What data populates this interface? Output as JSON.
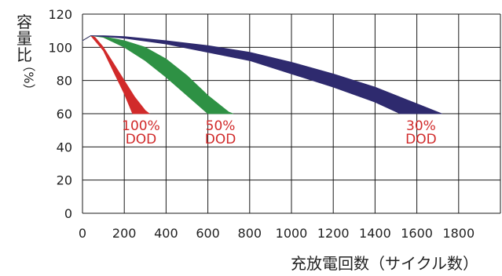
{
  "chart_data": {
    "type": "area",
    "title": "",
    "xlabel": "充放電回数（サイクル数）",
    "ylabel_chars": [
      "容",
      "量",
      "比"
    ],
    "ylabel_unit": "（%）",
    "xlim": [
      0,
      2000
    ],
    "ylim": [
      0,
      120
    ],
    "x_ticks": [
      0,
      200,
      400,
      600,
      800,
      1000,
      1200,
      1400,
      1600,
      1800
    ],
    "y_ticks": [
      0,
      20,
      40,
      60,
      80,
      100,
      120
    ],
    "grid": true,
    "series": [
      {
        "id": "dod100",
        "label_lines": [
          "100%",
          "DOD"
        ],
        "color": "#d12a2a",
        "label_color": "#d12a2a",
        "upper": [
          [
            0,
            104
          ],
          [
            40,
            107
          ],
          [
            60,
            106
          ],
          [
            100,
            100
          ],
          [
            150,
            90
          ],
          [
            200,
            80
          ],
          [
            250,
            70
          ],
          [
            300,
            62
          ],
          [
            320,
            60
          ]
        ],
        "lower": [
          [
            0,
            104
          ],
          [
            40,
            107
          ],
          [
            100,
            98
          ],
          [
            150,
            85
          ],
          [
            200,
            72
          ],
          [
            240,
            60
          ]
        ]
      },
      {
        "id": "dod50",
        "label_lines": [
          "50%",
          "DOD"
        ],
        "color": "#2e9144",
        "label_color": "#d12a2a",
        "upper": [
          [
            0,
            104
          ],
          [
            40,
            107
          ],
          [
            100,
            106.5
          ],
          [
            200,
            104
          ],
          [
            300,
            100
          ],
          [
            400,
            93
          ],
          [
            500,
            83
          ],
          [
            600,
            71
          ],
          [
            700,
            61
          ],
          [
            720,
            60
          ]
        ],
        "lower": [
          [
            0,
            104
          ],
          [
            40,
            107
          ],
          [
            100,
            106
          ],
          [
            200,
            100
          ],
          [
            300,
            92
          ],
          [
            400,
            82
          ],
          [
            500,
            71
          ],
          [
            600,
            60
          ]
        ]
      },
      {
        "id": "dod30",
        "label_lines": [
          "30%",
          "DOD"
        ],
        "color": "#2e2a6e",
        "label_color": "#d12a2a",
        "upper": [
          [
            0,
            104
          ],
          [
            40,
            107
          ],
          [
            100,
            107
          ],
          [
            200,
            106.5
          ],
          [
            400,
            104
          ],
          [
            600,
            101
          ],
          [
            800,
            97
          ],
          [
            1000,
            91
          ],
          [
            1200,
            84
          ],
          [
            1400,
            76
          ],
          [
            1600,
            66
          ],
          [
            1720,
            60
          ]
        ],
        "lower": [
          [
            0,
            104
          ],
          [
            40,
            107
          ],
          [
            100,
            106.5
          ],
          [
            200,
            105.5
          ],
          [
            400,
            102
          ],
          [
            600,
            97
          ],
          [
            800,
            92
          ],
          [
            1000,
            84
          ],
          [
            1200,
            76
          ],
          [
            1400,
            67
          ],
          [
            1520,
            60
          ]
        ]
      }
    ]
  }
}
